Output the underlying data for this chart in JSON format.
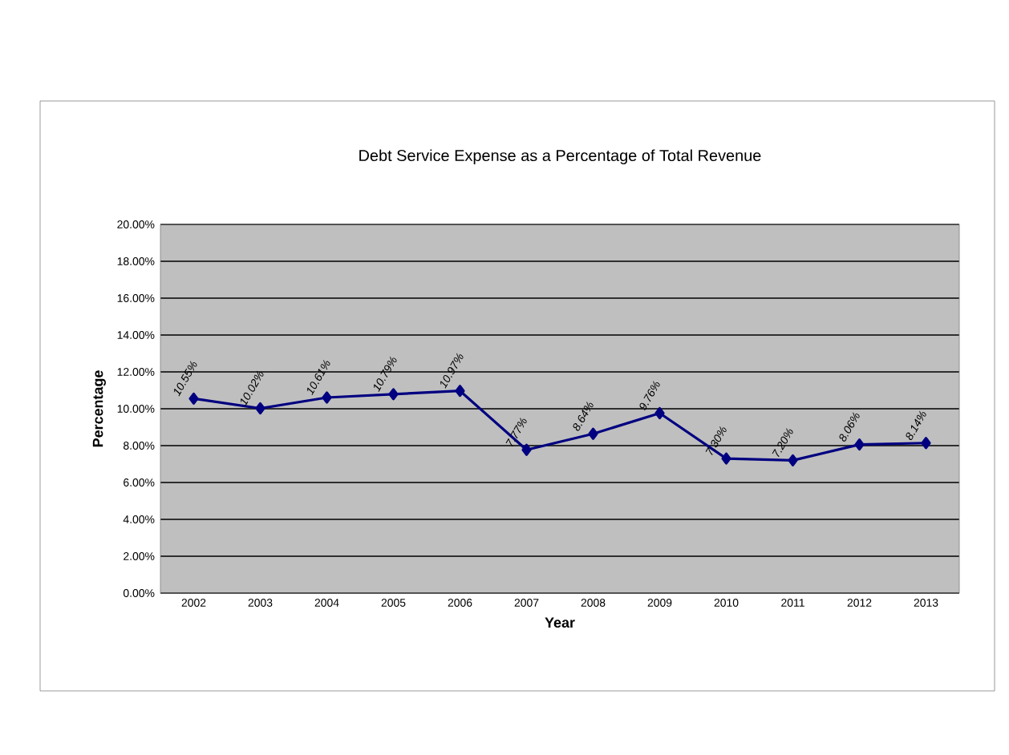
{
  "chart_data": {
    "type": "line",
    "title": "Debt Service Expense as a Percentage of Total Revenue",
    "xlabel": "Year",
    "ylabel": "Percentage",
    "categories": [
      "2002",
      "2003",
      "2004",
      "2005",
      "2006",
      "2007",
      "2008",
      "2009",
      "2010",
      "2011",
      "2012",
      "2013"
    ],
    "series": [
      {
        "color": "#000080",
        "values": [
          10.55,
          10.02,
          10.61,
          10.79,
          10.97,
          7.77,
          8.64,
          9.76,
          7.3,
          7.2,
          8.06,
          8.14
        ]
      }
    ],
    "value_labels": [
      "10.55%",
      "10.02%",
      "10.61%",
      "10.79%",
      "10.97%",
      "7.77%",
      "8.64%",
      "9.76%",
      "7.30%",
      "7.20%",
      "8.06%",
      "8.14%"
    ],
    "ylim": [
      0,
      20
    ],
    "yticks": [
      {
        "value": 0,
        "label": "0.00%"
      },
      {
        "value": 2,
        "label": "2.00%"
      },
      {
        "value": 4,
        "label": "4.00%"
      },
      {
        "value": 6,
        "label": "6.00%"
      },
      {
        "value": 8,
        "label": "8.00%"
      },
      {
        "value": 10,
        "label": "10.00%"
      },
      {
        "value": 12,
        "label": "12.00%"
      },
      {
        "value": 14,
        "label": "14.00%"
      },
      {
        "value": 16,
        "label": "16.00%"
      },
      {
        "value": 18,
        "label": "18.00%"
      },
      {
        "value": 20,
        "label": "20.00%"
      }
    ],
    "grid": "y",
    "marker": "diamond",
    "line_style": "solid"
  }
}
